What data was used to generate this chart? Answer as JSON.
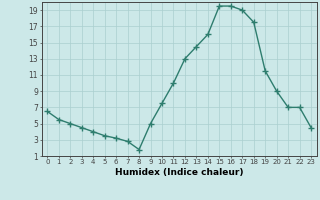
{
  "x": [
    0,
    1,
    2,
    3,
    4,
    5,
    6,
    7,
    8,
    9,
    10,
    11,
    12,
    13,
    14,
    15,
    16,
    17,
    18,
    19,
    20,
    21,
    22,
    23
  ],
  "y": [
    6.5,
    5.5,
    5.0,
    4.5,
    4.0,
    3.5,
    3.2,
    2.8,
    1.8,
    5.0,
    7.5,
    10.0,
    13.0,
    14.5,
    16.0,
    19.5,
    19.5,
    19.0,
    17.5,
    11.5,
    9.0,
    7.0,
    7.0,
    4.5
  ],
  "xlabel": "Humidex (Indice chaleur)",
  "xlim": [
    -0.5,
    23.5
  ],
  "ylim": [
    1,
    20
  ],
  "yticks": [
    1,
    3,
    5,
    7,
    9,
    11,
    13,
    15,
    17,
    19
  ],
  "xticks": [
    0,
    1,
    2,
    3,
    4,
    5,
    6,
    7,
    8,
    9,
    10,
    11,
    12,
    13,
    14,
    15,
    16,
    17,
    18,
    19,
    20,
    21,
    22,
    23
  ],
  "line_color": "#2e7d6e",
  "marker": "+",
  "bg_color": "#cce8e8",
  "grid_color": "#aacfcf",
  "axis_color": "#444444",
  "tick_label_color": "#333333"
}
